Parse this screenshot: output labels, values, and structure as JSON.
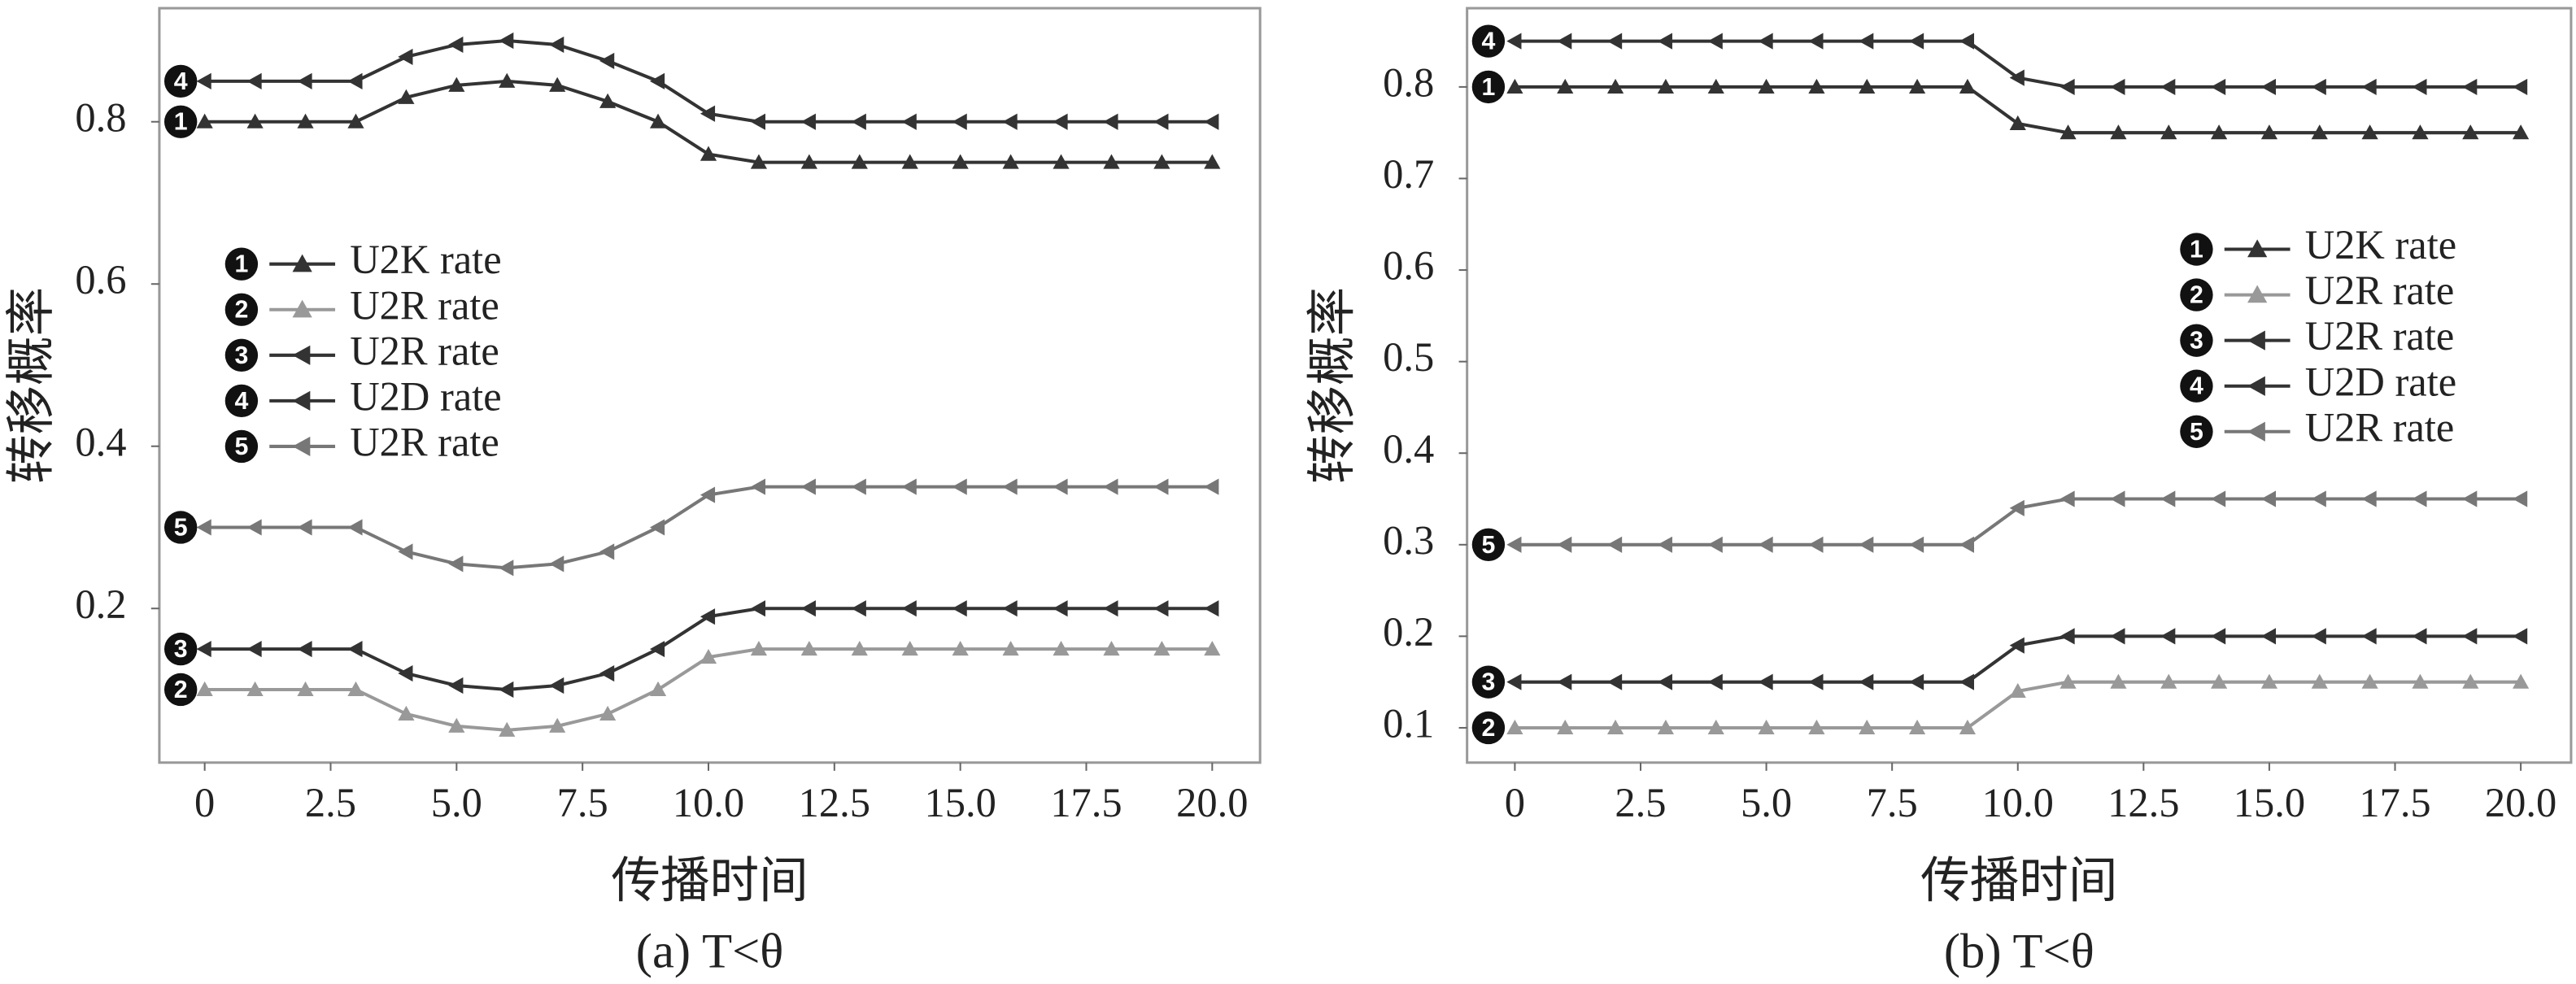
{
  "chart_data": [
    {
      "type": "line",
      "ylabel": "转移概率",
      "xlabel": "传播时间",
      "caption": "(a) T<θ",
      "legend_position": "center left",
      "x": [
        0,
        1,
        2,
        3,
        4,
        5,
        6,
        7,
        8,
        9,
        10,
        11,
        12,
        13,
        14,
        15,
        16,
        17,
        18,
        19,
        20
      ],
      "xlim": [
        -0.9,
        20.95
      ],
      "ylim": [
        0.01,
        0.94
      ],
      "xticks": [
        0,
        2.5,
        {
          "value": 5,
          "label": "5.0"
        },
        7.5,
        {
          "value": 10,
          "label": "10.0"
        },
        12.5,
        {
          "value": 15,
          "label": "15.0"
        },
        17.5,
        {
          "value": 20,
          "label": "20.0"
        }
      ],
      "yticks": [
        0.2,
        0.4,
        0.6,
        0.8
      ],
      "series": [
        {
          "name": "U2K rate",
          "badge": "1",
          "color": "#333333",
          "marker": "^",
          "values": [
            0.8,
            0.8,
            0.8,
            0.8,
            0.83,
            0.845,
            0.85,
            0.845,
            0.825,
            0.8,
            0.76,
            0.75,
            0.75,
            0.75,
            0.75,
            0.75,
            0.75,
            0.75,
            0.75,
            0.75,
            0.75
          ]
        },
        {
          "name": "U2R rate",
          "badge": "2",
          "color": "#999999",
          "marker": "^",
          "values": [
            0.1,
            0.1,
            0.1,
            0.1,
            0.07,
            0.055,
            0.05,
            0.055,
            0.07,
            0.1,
            0.14,
            0.15,
            0.15,
            0.15,
            0.15,
            0.15,
            0.15,
            0.15,
            0.15,
            0.15,
            0.15
          ]
        },
        {
          "name": "U2R rate",
          "badge": "3",
          "color": "#333333",
          "marker": "<",
          "values": [
            0.15,
            0.15,
            0.15,
            0.15,
            0.12,
            0.105,
            0.1,
            0.105,
            0.12,
            0.15,
            0.19,
            0.2,
            0.2,
            0.2,
            0.2,
            0.2,
            0.2,
            0.2,
            0.2,
            0.2,
            0.2
          ]
        },
        {
          "name": "U2D rate",
          "badge": "4",
          "color": "#333333",
          "marker": "<",
          "values": [
            0.85,
            0.85,
            0.85,
            0.85,
            0.88,
            0.895,
            0.9,
            0.895,
            0.875,
            0.85,
            0.81,
            0.8,
            0.8,
            0.8,
            0.8,
            0.8,
            0.8,
            0.8,
            0.8,
            0.8,
            0.8
          ]
        },
        {
          "name": "U2R rate",
          "badge": "5",
          "color": "#777777",
          "marker": "<",
          "values": [
            0.3,
            0.3,
            0.3,
            0.3,
            0.27,
            0.255,
            0.25,
            0.255,
            0.27,
            0.3,
            0.34,
            0.35,
            0.35,
            0.35,
            0.35,
            0.35,
            0.35,
            0.35,
            0.35,
            0.35,
            0.35
          ]
        }
      ]
    },
    {
      "type": "line",
      "ylabel": "转移概率",
      "xlabel": "传播时间",
      "caption": "(b) T<θ",
      "legend_position": "center right",
      "x": [
        0,
        1,
        2,
        3,
        4,
        5,
        6,
        7,
        8,
        9,
        10,
        11,
        12,
        13,
        14,
        15,
        16,
        17,
        18,
        19,
        20
      ],
      "xlim": [
        -0.95,
        21.0
      ],
      "ylim": [
        0.062,
        0.886
      ],
      "xticks": [
        0,
        2.5,
        {
          "value": 5,
          "label": "5.0"
        },
        7.5,
        {
          "value": 10,
          "label": "10.0"
        },
        12.5,
        {
          "value": 15,
          "label": "15.0"
        },
        17.5,
        {
          "value": 20,
          "label": "20.0"
        }
      ],
      "yticks": [
        0.1,
        0.2,
        0.3,
        0.4,
        0.5,
        0.6,
        0.7,
        0.8
      ],
      "series": [
        {
          "name": "U2K rate",
          "badge": "1",
          "color": "#333333",
          "marker": "^",
          "values": [
            0.8,
            0.8,
            0.8,
            0.8,
            0.8,
            0.8,
            0.8,
            0.8,
            0.8,
            0.8,
            0.76,
            0.75,
            0.75,
            0.75,
            0.75,
            0.75,
            0.75,
            0.75,
            0.75,
            0.75,
            0.75
          ]
        },
        {
          "name": "U2R rate",
          "badge": "2",
          "color": "#999999",
          "marker": "^",
          "values": [
            0.1,
            0.1,
            0.1,
            0.1,
            0.1,
            0.1,
            0.1,
            0.1,
            0.1,
            0.1,
            0.14,
            0.15,
            0.15,
            0.15,
            0.15,
            0.15,
            0.15,
            0.15,
            0.15,
            0.15,
            0.15
          ]
        },
        {
          "name": "U2R rate",
          "badge": "3",
          "color": "#333333",
          "marker": "<",
          "values": [
            0.15,
            0.15,
            0.15,
            0.15,
            0.15,
            0.15,
            0.15,
            0.15,
            0.15,
            0.15,
            0.19,
            0.2,
            0.2,
            0.2,
            0.2,
            0.2,
            0.2,
            0.2,
            0.2,
            0.2,
            0.2
          ]
        },
        {
          "name": "U2D rate",
          "badge": "4",
          "color": "#333333",
          "marker": "<",
          "values": [
            0.85,
            0.85,
            0.85,
            0.85,
            0.85,
            0.85,
            0.85,
            0.85,
            0.85,
            0.85,
            0.81,
            0.8,
            0.8,
            0.8,
            0.8,
            0.8,
            0.8,
            0.8,
            0.8,
            0.8,
            0.8
          ]
        },
        {
          "name": "U2R rate",
          "badge": "5",
          "color": "#777777",
          "marker": "<",
          "values": [
            0.3,
            0.3,
            0.3,
            0.3,
            0.3,
            0.3,
            0.3,
            0.3,
            0.3,
            0.3,
            0.34,
            0.35,
            0.35,
            0.35,
            0.35,
            0.35,
            0.35,
            0.35,
            0.35,
            0.35,
            0.35
          ]
        }
      ]
    }
  ]
}
